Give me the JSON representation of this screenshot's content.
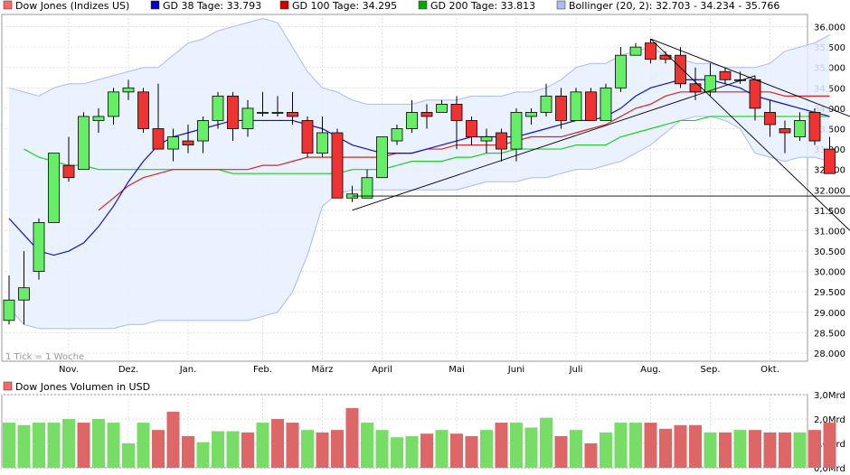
{
  "chart_data": [
    {
      "type": "candlestick",
      "title": "",
      "legend": [
        {
          "label": "Dow Jones (Indizes US)",
          "color": "#ff6666"
        },
        {
          "label": "GD 38 Tage: 33.793",
          "color": "#0000cc"
        },
        {
          "label": "GD 100 Tage: 34.295",
          "color": "#cc0000"
        },
        {
          "label": "GD 200 Tage: 33.813",
          "color": "#00aa00"
        },
        {
          "label": "Bollinger (20, 2): 32.703 - 34.234 - 35.766",
          "color": "#aabbee"
        }
      ],
      "legend_position": "top",
      "note": "1 Tick = 1 Woche",
      "x_labels": [
        "Nov.",
        "Dez.",
        "Jan.",
        "Feb.",
        "März",
        "April",
        "Mai",
        "Juni",
        "Juli",
        "Aug.",
        "Sep.",
        "Okt."
      ],
      "x_label_index": [
        4,
        8,
        12,
        17,
        21,
        25,
        30,
        34,
        38,
        43,
        47,
        51
      ],
      "y_ticks": [
        {
          "value": 28000,
          "label": "28.000"
        },
        {
          "value": 28500,
          "label": "28.500"
        },
        {
          "value": 29000,
          "label": "29.000"
        },
        {
          "value": 29500,
          "label": "29.500"
        },
        {
          "value": 30000,
          "label": "30.000"
        },
        {
          "value": 30500,
          "label": "30.500"
        },
        {
          "value": 31000,
          "label": "31.000"
        },
        {
          "value": 31500,
          "label": "31.500"
        },
        {
          "value": 32000,
          "label": "32.000"
        },
        {
          "value": 32500,
          "label": "32.500"
        },
        {
          "value": 33000,
          "label": "33.000"
        },
        {
          "value": 33500,
          "label": "33.500"
        },
        {
          "value": 34000,
          "label": "34.000"
        },
        {
          "value": 34500,
          "label": "34.500"
        },
        {
          "value": 35000,
          "label": "35.000"
        },
        {
          "value": 35500,
          "label": "35.500"
        },
        {
          "value": 36000,
          "label": "36.000"
        }
      ],
      "ylim": [
        27800,
        36300
      ],
      "grid": true,
      "candles": [
        {
          "o": 28800,
          "h": 29900,
          "l": 28700,
          "c": 29300
        },
        {
          "o": 29300,
          "h": 30500,
          "l": 28700,
          "c": 29600
        },
        {
          "o": 30000,
          "h": 31300,
          "l": 29800,
          "c": 31200
        },
        {
          "o": 31200,
          "h": 32900,
          "l": 31200,
          "c": 32900
        },
        {
          "o": 32600,
          "h": 33300,
          "l": 32200,
          "c": 32300
        },
        {
          "o": 32500,
          "h": 33900,
          "l": 32500,
          "c": 33800
        },
        {
          "o": 33700,
          "h": 34000,
          "l": 33400,
          "c": 33800
        },
        {
          "o": 33800,
          "h": 34500,
          "l": 33600,
          "c": 34400
        },
        {
          "o": 34400,
          "h": 34700,
          "l": 34200,
          "c": 34500
        },
        {
          "o": 34400,
          "h": 34500,
          "l": 33400,
          "c": 33500
        },
        {
          "o": 33500,
          "h": 34600,
          "l": 33000,
          "c": 33000
        },
        {
          "o": 33000,
          "h": 33500,
          "l": 32700,
          "c": 33300
        },
        {
          "o": 33200,
          "h": 33600,
          "l": 32900,
          "c": 33100
        },
        {
          "o": 33200,
          "h": 33800,
          "l": 32900,
          "c": 33700
        },
        {
          "o": 33700,
          "h": 34400,
          "l": 33500,
          "c": 34300
        },
        {
          "o": 34300,
          "h": 34400,
          "l": 33200,
          "c": 33500
        },
        {
          "o": 33500,
          "h": 34200,
          "l": 33300,
          "c": 34000
        },
        {
          "o": 33900,
          "h": 34400,
          "l": 33800,
          "c": 33900
        },
        {
          "o": 33900,
          "h": 34300,
          "l": 33800,
          "c": 33900
        },
        {
          "o": 33900,
          "h": 34400,
          "l": 33600,
          "c": 33800
        },
        {
          "o": 33700,
          "h": 33800,
          "l": 32800,
          "c": 32900
        },
        {
          "o": 32900,
          "h": 33800,
          "l": 32800,
          "c": 33400
        },
        {
          "o": 33400,
          "h": 33500,
          "l": 31800,
          "c": 31800
        },
        {
          "o": 31800,
          "h": 32100,
          "l": 31700,
          "c": 31900
        },
        {
          "o": 31800,
          "h": 32500,
          "l": 31800,
          "c": 32300
        },
        {
          "o": 32300,
          "h": 33300,
          "l": 32300,
          "c": 33300
        },
        {
          "o": 33200,
          "h": 33600,
          "l": 33100,
          "c": 33500
        },
        {
          "o": 33500,
          "h": 34200,
          "l": 33400,
          "c": 33900
        },
        {
          "o": 33900,
          "h": 34100,
          "l": 33500,
          "c": 33800
        },
        {
          "o": 33900,
          "h": 34200,
          "l": 33900,
          "c": 34100
        },
        {
          "o": 34100,
          "h": 34300,
          "l": 33000,
          "c": 33700
        },
        {
          "o": 33700,
          "h": 33800,
          "l": 33100,
          "c": 33300
        },
        {
          "o": 33200,
          "h": 33500,
          "l": 32900,
          "c": 33300
        },
        {
          "o": 33400,
          "h": 33500,
          "l": 32700,
          "c": 33000
        },
        {
          "o": 33000,
          "h": 34000,
          "l": 32700,
          "c": 33900
        },
        {
          "o": 33800,
          "h": 34000,
          "l": 33600,
          "c": 33900
        },
        {
          "o": 33900,
          "h": 34600,
          "l": 33800,
          "c": 34300
        },
        {
          "o": 34300,
          "h": 34500,
          "l": 33500,
          "c": 33700
        },
        {
          "o": 33700,
          "h": 34500,
          "l": 33700,
          "c": 34400
        },
        {
          "o": 34400,
          "h": 34500,
          "l": 33700,
          "c": 33700
        },
        {
          "o": 33700,
          "h": 34600,
          "l": 33700,
          "c": 34500
        },
        {
          "o": 34500,
          "h": 35500,
          "l": 34400,
          "c": 35300
        },
        {
          "o": 35300,
          "h": 35600,
          "l": 35300,
          "c": 35500
        },
        {
          "o": 35600,
          "h": 35700,
          "l": 35100,
          "c": 35200
        },
        {
          "o": 35300,
          "h": 35400,
          "l": 35100,
          "c": 35200
        },
        {
          "o": 35300,
          "h": 35500,
          "l": 34500,
          "c": 34600
        },
        {
          "o": 34600,
          "h": 35000,
          "l": 34200,
          "c": 34400
        },
        {
          "o": 34400,
          "h": 35100,
          "l": 34300,
          "c": 34800
        },
        {
          "o": 34900,
          "h": 35000,
          "l": 34600,
          "c": 34700
        },
        {
          "o": 34700,
          "h": 34900,
          "l": 34600,
          "c": 34700
        },
        {
          "o": 34700,
          "h": 34800,
          "l": 33700,
          "c": 34000
        },
        {
          "o": 33900,
          "h": 34200,
          "l": 33300,
          "c": 33600
        },
        {
          "o": 33500,
          "h": 33700,
          "l": 32900,
          "c": 33400
        },
        {
          "o": 33300,
          "h": 33900,
          "l": 33200,
          "c": 33700
        },
        {
          "o": 33900,
          "h": 34000,
          "l": 33100,
          "c": 33200
        },
        {
          "o": 33000,
          "h": 33300,
          "l": 32400,
          "c": 32400
        }
      ],
      "ma38": [
        31300,
        30900,
        30500,
        30400,
        30500,
        30700,
        31100,
        31600,
        32200,
        32700,
        33100,
        33300,
        33400,
        33500,
        33600,
        33700,
        33700,
        33700,
        33700,
        33700,
        33600,
        33500,
        33300,
        33100,
        33000,
        32900,
        32900,
        32900,
        33000,
        33100,
        33200,
        33300,
        33300,
        33300,
        33300,
        33400,
        33500,
        33600,
        33700,
        33700,
        33800,
        34000,
        34300,
        34500,
        34600,
        34700,
        34700,
        34700,
        34600,
        34500,
        34300,
        34200,
        34100,
        34000,
        33900,
        33800
      ],
      "ma100": [
        null,
        null,
        null,
        null,
        null,
        null,
        31500,
        31800,
        32100,
        32300,
        32400,
        32500,
        32500,
        32500,
        32500,
        32500,
        32500,
        32600,
        32600,
        32700,
        32800,
        32800,
        32800,
        32800,
        32800,
        32800,
        32900,
        32900,
        33000,
        33000,
        33100,
        33100,
        33100,
        33100,
        33200,
        33300,
        33300,
        33300,
        33400,
        33500,
        33600,
        33800,
        34000,
        34100,
        34300,
        34400,
        34400,
        34400,
        34400,
        34400,
        34400,
        34400,
        34300,
        34300,
        34300,
        34300
      ],
      "ma200": [
        null,
        33000,
        32800,
        32700,
        32600,
        32600,
        32500,
        32500,
        32500,
        32500,
        32500,
        32500,
        32500,
        32500,
        32500,
        32400,
        32400,
        32400,
        32400,
        32400,
        32400,
        32400,
        32400,
        32500,
        32500,
        32500,
        32600,
        32700,
        32700,
        32700,
        32800,
        32800,
        32900,
        32900,
        33000,
        33000,
        33000,
        33000,
        33100,
        33100,
        33100,
        33300,
        33400,
        33500,
        33600,
        33700,
        33700,
        33800,
        33800,
        33800,
        33800,
        33800,
        33800,
        33800,
        33800,
        33800
      ],
      "bb_upper": [
        34500,
        34400,
        34300,
        34500,
        34600,
        34600,
        34700,
        34800,
        34900,
        35000,
        35000,
        35300,
        35600,
        35700,
        35900,
        36000,
        36100,
        36200,
        36100,
        35500,
        34900,
        34500,
        34400,
        34200,
        34100,
        34100,
        34100,
        34100,
        34200,
        34200,
        34200,
        34300,
        34300,
        34300,
        34400,
        34400,
        34500,
        34700,
        35000,
        35100,
        35100,
        35300,
        35400,
        35500,
        35300,
        35200,
        35100,
        35100,
        35000,
        35000,
        35000,
        35100,
        35400,
        35500,
        35600,
        35800
      ],
      "bb_lower": [
        29100,
        28700,
        28600,
        28600,
        28600,
        28600,
        28600,
        28600,
        28700,
        28700,
        28800,
        28800,
        28800,
        28800,
        28800,
        28800,
        28800,
        28900,
        29000,
        29500,
        30400,
        31600,
        31900,
        32000,
        32000,
        32000,
        32000,
        32000,
        32000,
        32000,
        32000,
        32100,
        32200,
        32200,
        32200,
        32300,
        32300,
        32400,
        32500,
        32500,
        32600,
        32700,
        32900,
        33100,
        33400,
        33700,
        33800,
        33800,
        33700,
        33500,
        32900,
        32800,
        32700,
        32800,
        32800,
        32700
      ],
      "trendlines": [
        {
          "from": {
            "i": 23,
            "v": 31500
          },
          "to": {
            "i": 50,
            "v": 34800
          }
        },
        {
          "from": {
            "i": 43,
            "v": 35700
          },
          "to": {
            "i": 58,
            "v": 31000
          }
        },
        {
          "from": {
            "i": 43,
            "v": 35700
          },
          "to": {
            "i": 58,
            "v": 33800
          }
        },
        {
          "from": {
            "i": 23,
            "v": 31850
          },
          "to": {
            "i": 57,
            "v": 31850
          }
        }
      ]
    },
    {
      "type": "bar",
      "title": "Dow Jones Volumen in USD",
      "legend_color": "#ff6666",
      "y_ticks": [
        {
          "value": 0,
          "label": "0,0Mrd"
        },
        {
          "value": 1,
          "label": "1,0Mrd"
        },
        {
          "value": 2,
          "label": "2,0Mrd"
        },
        {
          "value": 3,
          "label": "3,0Mrd"
        }
      ],
      "ylim": [
        0,
        3
      ],
      "volumes": [
        1.85,
        1.75,
        1.85,
        1.85,
        2.0,
        1.85,
        2.0,
        1.85,
        1.0,
        1.85,
        1.55,
        2.3,
        1.3,
        1.05,
        1.5,
        1.5,
        1.45,
        1.85,
        2.0,
        1.85,
        1.55,
        1.45,
        1.55,
        2.45,
        1.85,
        1.55,
        1.25,
        1.3,
        1.4,
        1.55,
        1.4,
        1.3,
        1.55,
        1.85,
        1.85,
        1.65,
        2.05,
        1.3,
        1.55,
        1.0,
        1.45,
        1.85,
        1.85,
        1.85,
        1.6,
        1.75,
        1.75,
        1.45,
        1.45,
        1.55,
        1.55,
        1.45,
        1.45,
        1.45,
        1.55,
        1.85
      ],
      "volume_colors": [
        "up",
        "up",
        "up",
        "up",
        "up",
        "down",
        "up",
        "up",
        "up",
        "up",
        "down",
        "down",
        "down",
        "up",
        "up",
        "up",
        "down",
        "up",
        "down",
        "down",
        "up",
        "down",
        "down",
        "down",
        "up",
        "up",
        "up",
        "up",
        "down",
        "up",
        "down",
        "down",
        "up",
        "down",
        "up",
        "up",
        "up",
        "down",
        "up",
        "down",
        "up",
        "up",
        "up",
        "down",
        "down",
        "down",
        "down",
        "up",
        "down",
        "up",
        "down",
        "down",
        "down",
        "up",
        "down",
        "down"
      ]
    }
  ]
}
